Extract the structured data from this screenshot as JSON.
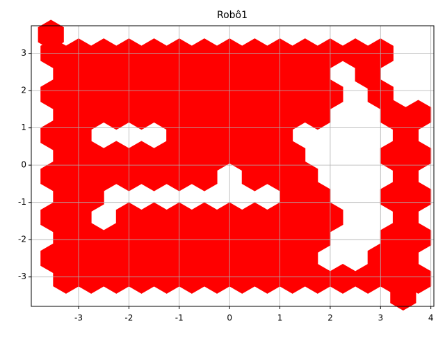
{
  "chart_data": {
    "type": "scatter",
    "title": "Robô1",
    "marker": "hexagon",
    "color": "#ff0000",
    "grid": true,
    "xlim": [
      -3.94,
      4.06
    ],
    "ylim": [
      -3.79,
      3.74
    ],
    "xticks": [
      -3,
      -2,
      -1,
      0,
      1,
      2,
      3,
      4
    ],
    "yticks": [
      -3,
      -2,
      -1,
      0,
      1,
      2,
      3
    ],
    "x": [
      -3.5,
      -3,
      -2.5,
      -2,
      -1.5,
      -1,
      -0.5,
      0,
      0.5,
      1,
      1.5,
      2,
      2.5,
      3,
      -3.25,
      -2.75,
      -2.25,
      -1.75,
      -1.25,
      -0.75,
      -0.25,
      0.25,
      0.75,
      1.25,
      1.75,
      2.75,
      -3.5,
      -3,
      -2.5,
      -2,
      -1.5,
      -1,
      -0.5,
      0,
      0.5,
      1,
      1.5,
      2,
      3,
      -3.25,
      -2.75,
      -2.25,
      -1.75,
      -1.25,
      -0.75,
      -0.25,
      0.25,
      0.75,
      1.25,
      1.75,
      3.25,
      3.75,
      -3.5,
      -3,
      -1,
      -0.5,
      0,
      0.5,
      1,
      3.5,
      -3.25,
      -2.75,
      -2.25,
      -1.75,
      -1.25,
      -0.75,
      -0.25,
      0.25,
      0.75,
      1.25,
      3.25,
      3.75,
      -3.5,
      -3,
      -2.5,
      -2,
      -1.5,
      -1,
      -0.5,
      0.5,
      1,
      1.5,
      3.5,
      -3.25,
      -2.75,
      1.25,
      1.75,
      3.25,
      3.75,
      -3.5,
      -3,
      -2,
      -1.5,
      -1,
      -0.5,
      0,
      0.5,
      1,
      1.5,
      2,
      3.5,
      -3.25,
      -2.75,
      -2.25,
      -1.75,
      -1.25,
      -0.75,
      -0.25,
      0.25,
      0.75,
      1.25,
      1.75,
      3.25,
      3.75,
      -3.5,
      -3,
      -2.5,
      -2,
      -1.5,
      -1,
      -0.5,
      0,
      0.5,
      1,
      1.5,
      3,
      3.5,
      -3.25,
      -2.75,
      -2.25,
      -1.75,
      -1.25,
      -0.75,
      -0.25,
      0.25,
      0.75,
      1.25,
      1.75,
      2.25,
      2.75,
      3.25,
      3.75,
      -3.55,
      3.45
    ],
    "y": [
      3,
      3,
      3,
      3,
      3,
      3,
      3,
      3,
      3,
      3,
      3,
      3,
      3,
      3,
      2.45,
      2.45,
      2.45,
      2.45,
      2.45,
      2.45,
      2.45,
      2.45,
      2.45,
      2.45,
      2.45,
      2.45,
      1.9,
      1.9,
      1.9,
      1.9,
      1.9,
      1.9,
      1.9,
      1.9,
      1.9,
      1.9,
      1.9,
      1.9,
      1.9,
      1.35,
      1.35,
      1.35,
      1.35,
      1.35,
      1.35,
      1.35,
      1.35,
      1.35,
      1.35,
      1.35,
      1.35,
      1.35,
      0.8,
      0.8,
      0.8,
      0.8,
      0.8,
      0.8,
      0.8,
      0.8,
      0.25,
      0.25,
      0.25,
      0.25,
      0.25,
      0.25,
      0.25,
      0.25,
      0.25,
      0.25,
      0.25,
      0.25,
      -0.3,
      -0.3,
      -0.3,
      -0.3,
      -0.3,
      -0.3,
      -0.3,
      -0.3,
      -0.3,
      -0.3,
      -0.3,
      -0.85,
      -0.85,
      -0.85,
      -0.85,
      -0.85,
      -0.85,
      -1.4,
      -1.4,
      -1.4,
      -1.4,
      -1.4,
      -1.4,
      -1.4,
      -1.4,
      -1.4,
      -1.4,
      -1.4,
      -1.4,
      -1.95,
      -1.95,
      -1.95,
      -1.95,
      -1.95,
      -1.95,
      -1.95,
      -1.95,
      -1.95,
      -1.95,
      -1.95,
      -1.95,
      -1.95,
      -2.5,
      -2.5,
      -2.5,
      -2.5,
      -2.5,
      -2.5,
      -2.5,
      -2.5,
      -2.5,
      -2.5,
      -2.5,
      -2.5,
      -2.5,
      -3.05,
      -3.05,
      -3.05,
      -3.05,
      -3.05,
      -3.05,
      -3.05,
      -3.05,
      -3.05,
      -3.05,
      -3.05,
      -3.05,
      -3.05,
      -3.05,
      -3.05,
      3.5,
      -3.5
    ]
  }
}
